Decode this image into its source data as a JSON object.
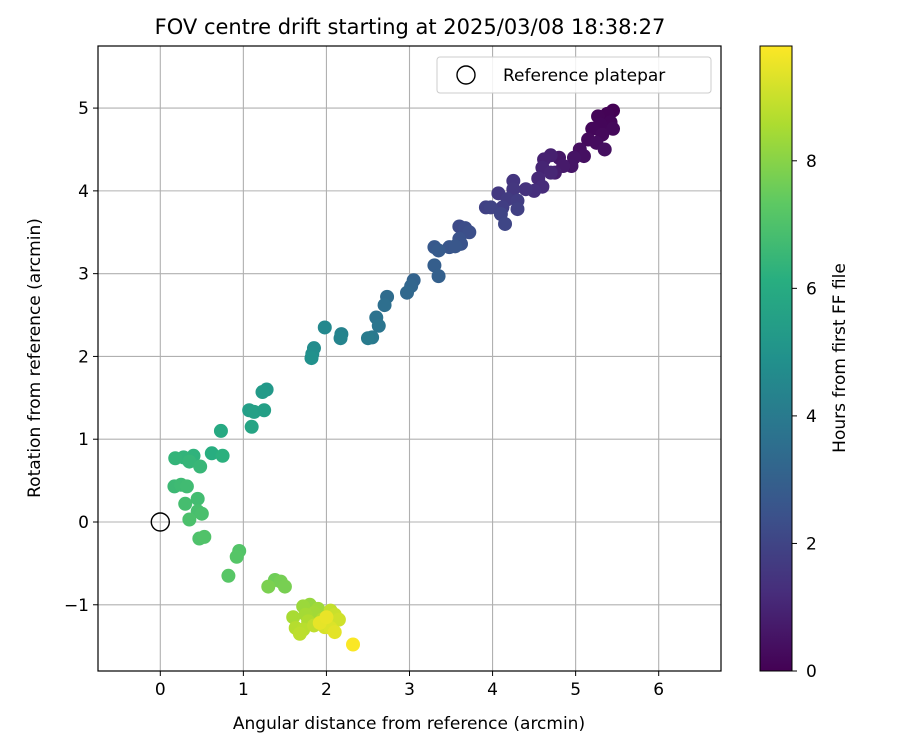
{
  "chart_data": {
    "type": "scatter",
    "title": "FOV centre drift starting at 2025/03/08 18:38:27",
    "xlabel": "Angular distance from reference (arcmin)",
    "ylabel": "Rotation from reference (arcmin)",
    "xlim": [
      -0.75,
      6.75
    ],
    "ylim": [
      -1.8,
      5.75
    ],
    "xticks": [
      0,
      1,
      2,
      3,
      4,
      5,
      6
    ],
    "yticks": [
      -1,
      0,
      1,
      2,
      3,
      4,
      5
    ],
    "ytick_labels": [
      "−1",
      "0",
      "1",
      "2",
      "3",
      "4",
      "5"
    ],
    "grid": true,
    "legend": {
      "label": "Reference platepar",
      "placement": "top-right",
      "marker": "open-circle"
    },
    "reference_point": {
      "x": 0,
      "y": 0
    },
    "colorbar": {
      "label": "Hours from first FF file",
      "range": [
        0,
        9.8
      ],
      "ticks": [
        0,
        2,
        4,
        6,
        8
      ],
      "colormap": "viridis"
    },
    "series": [
      {
        "values": [
          {
            "x": 5.45,
            "y": 4.97,
            "c": 0.0
          },
          {
            "x": 5.38,
            "y": 4.93,
            "c": 0.05
          },
          {
            "x": 5.27,
            "y": 4.9,
            "c": 0.1
          },
          {
            "x": 5.42,
            "y": 4.83,
            "c": 0.12
          },
          {
            "x": 5.3,
            "y": 4.8,
            "c": 0.15
          },
          {
            "x": 5.2,
            "y": 4.75,
            "c": 0.18
          },
          {
            "x": 5.45,
            "y": 4.75,
            "c": 0.2
          },
          {
            "x": 5.32,
            "y": 4.68,
            "c": 0.22
          },
          {
            "x": 5.15,
            "y": 4.62,
            "c": 0.25
          },
          {
            "x": 5.25,
            "y": 4.58,
            "c": 0.3
          },
          {
            "x": 5.05,
            "y": 4.5,
            "c": 0.35
          },
          {
            "x": 5.35,
            "y": 4.5,
            "c": 0.38
          },
          {
            "x": 5.1,
            "y": 4.42,
            "c": 0.42
          },
          {
            "x": 4.98,
            "y": 4.4,
            "c": 0.5
          },
          {
            "x": 4.95,
            "y": 4.3,
            "c": 0.55
          },
          {
            "x": 4.8,
            "y": 4.4,
            "c": 0.6
          },
          {
            "x": 4.85,
            "y": 4.3,
            "c": 0.7
          },
          {
            "x": 4.75,
            "y": 4.22,
            "c": 0.8
          },
          {
            "x": 4.7,
            "y": 4.43,
            "c": 0.85
          },
          {
            "x": 4.62,
            "y": 4.38,
            "c": 0.9
          },
          {
            "x": 4.6,
            "y": 4.28,
            "c": 1.0
          },
          {
            "x": 4.7,
            "y": 4.22,
            "c": 1.05
          },
          {
            "x": 4.55,
            "y": 4.15,
            "c": 1.1
          },
          {
            "x": 4.6,
            "y": 4.05,
            "c": 1.2
          },
          {
            "x": 4.5,
            "y": 4.0,
            "c": 1.3
          },
          {
            "x": 4.4,
            "y": 4.02,
            "c": 1.4
          },
          {
            "x": 4.25,
            "y": 4.12,
            "c": 1.5
          },
          {
            "x": 4.25,
            "y": 4.02,
            "c": 1.55
          },
          {
            "x": 4.07,
            "y": 3.97,
            "c": 1.6
          },
          {
            "x": 4.18,
            "y": 3.9,
            "c": 1.7
          },
          {
            "x": 4.3,
            "y": 3.88,
            "c": 1.75
          },
          {
            "x": 4.12,
            "y": 3.8,
            "c": 1.8
          },
          {
            "x": 4.3,
            "y": 3.78,
            "c": 1.85
          },
          {
            "x": 3.92,
            "y": 3.8,
            "c": 1.9
          },
          {
            "x": 3.98,
            "y": 3.8,
            "c": 1.95
          },
          {
            "x": 4.1,
            "y": 3.72,
            "c": 2.0
          },
          {
            "x": 4.15,
            "y": 3.6,
            "c": 2.05
          },
          {
            "x": 3.6,
            "y": 3.57,
            "c": 2.2
          },
          {
            "x": 3.67,
            "y": 3.55,
            "c": 2.3
          },
          {
            "x": 3.72,
            "y": 3.5,
            "c": 2.35
          },
          {
            "x": 3.6,
            "y": 3.42,
            "c": 2.45
          },
          {
            "x": 3.62,
            "y": 3.36,
            "c": 2.5
          },
          {
            "x": 3.48,
            "y": 3.32,
            "c": 2.6
          },
          {
            "x": 3.55,
            "y": 3.33,
            "c": 2.65
          },
          {
            "x": 3.3,
            "y": 3.32,
            "c": 2.7
          },
          {
            "x": 3.35,
            "y": 3.28,
            "c": 2.8
          },
          {
            "x": 3.3,
            "y": 3.1,
            "c": 2.9
          },
          {
            "x": 3.35,
            "y": 2.97,
            "c": 3.0
          },
          {
            "x": 3.05,
            "y": 2.92,
            "c": 3.1
          },
          {
            "x": 3.02,
            "y": 2.85,
            "c": 3.2
          },
          {
            "x": 2.97,
            "y": 2.77,
            "c": 3.3
          },
          {
            "x": 2.73,
            "y": 2.72,
            "c": 3.45
          },
          {
            "x": 2.7,
            "y": 2.62,
            "c": 3.55
          },
          {
            "x": 2.6,
            "y": 2.47,
            "c": 3.7
          },
          {
            "x": 2.63,
            "y": 2.37,
            "c": 3.8
          },
          {
            "x": 2.55,
            "y": 2.23,
            "c": 3.95
          },
          {
            "x": 2.5,
            "y": 2.22,
            "c": 4.05
          },
          {
            "x": 2.18,
            "y": 2.27,
            "c": 4.3
          },
          {
            "x": 2.17,
            "y": 2.22,
            "c": 4.4
          },
          {
            "x": 1.98,
            "y": 2.35,
            "c": 4.55
          },
          {
            "x": 1.85,
            "y": 2.1,
            "c": 4.7
          },
          {
            "x": 1.83,
            "y": 2.03,
            "c": 4.8
          },
          {
            "x": 1.82,
            "y": 1.98,
            "c": 4.9
          },
          {
            "x": 1.28,
            "y": 1.6,
            "c": 5.2
          },
          {
            "x": 1.23,
            "y": 1.57,
            "c": 5.3
          },
          {
            "x": 1.07,
            "y": 1.35,
            "c": 5.45
          },
          {
            "x": 1.13,
            "y": 1.33,
            "c": 5.55
          },
          {
            "x": 1.25,
            "y": 1.35,
            "c": 5.5
          },
          {
            "x": 1.1,
            "y": 1.15,
            "c": 5.7
          },
          {
            "x": 0.73,
            "y": 1.1,
            "c": 5.9
          },
          {
            "x": 0.62,
            "y": 0.83,
            "c": 6.1
          },
          {
            "x": 0.75,
            "y": 0.8,
            "c": 6.2
          },
          {
            "x": 0.4,
            "y": 0.8,
            "c": 6.3
          },
          {
            "x": 0.28,
            "y": 0.78,
            "c": 6.35
          },
          {
            "x": 0.18,
            "y": 0.77,
            "c": 6.4
          },
          {
            "x": 0.35,
            "y": 0.73,
            "c": 6.45
          },
          {
            "x": 0.48,
            "y": 0.67,
            "c": 6.5
          },
          {
            "x": 0.17,
            "y": 0.43,
            "c": 6.6
          },
          {
            "x": 0.25,
            "y": 0.45,
            "c": 6.65
          },
          {
            "x": 0.32,
            "y": 0.43,
            "c": 6.7
          },
          {
            "x": 0.45,
            "y": 0.28,
            "c": 6.75
          },
          {
            "x": 0.3,
            "y": 0.22,
            "c": 6.8
          },
          {
            "x": 0.45,
            "y": 0.13,
            "c": 6.85
          },
          {
            "x": 0.5,
            "y": 0.1,
            "c": 6.9
          },
          {
            "x": 0.35,
            "y": 0.03,
            "c": 6.95
          },
          {
            "x": 0.47,
            "y": -0.2,
            "c": 7.0
          },
          {
            "x": 0.53,
            "y": -0.18,
            "c": 7.05
          },
          {
            "x": 0.95,
            "y": -0.35,
            "c": 7.1
          },
          {
            "x": 0.92,
            "y": -0.42,
            "c": 7.15
          },
          {
            "x": 0.82,
            "y": -0.65,
            "c": 7.2
          },
          {
            "x": 1.38,
            "y": -0.7,
            "c": 7.6
          },
          {
            "x": 1.45,
            "y": -0.72,
            "c": 7.7
          },
          {
            "x": 1.5,
            "y": -0.78,
            "c": 7.75
          },
          {
            "x": 1.3,
            "y": -0.78,
            "c": 7.8
          },
          {
            "x": 1.8,
            "y": -1.0,
            "c": 8.2
          },
          {
            "x": 1.72,
            "y": -1.02,
            "c": 8.3
          },
          {
            "x": 1.9,
            "y": -1.05,
            "c": 8.35
          },
          {
            "x": 1.85,
            "y": -1.1,
            "c": 8.4
          },
          {
            "x": 1.75,
            "y": -1.12,
            "c": 8.45
          },
          {
            "x": 1.6,
            "y": -1.15,
            "c": 8.5
          },
          {
            "x": 1.78,
            "y": -1.2,
            "c": 8.6
          },
          {
            "x": 1.95,
            "y": -1.18,
            "c": 8.65
          },
          {
            "x": 1.63,
            "y": -1.28,
            "c": 8.7
          },
          {
            "x": 1.72,
            "y": -1.3,
            "c": 8.75
          },
          {
            "x": 1.68,
            "y": -1.35,
            "c": 8.8
          },
          {
            "x": 1.85,
            "y": -1.25,
            "c": 8.85
          },
          {
            "x": 2.05,
            "y": -1.07,
            "c": 8.9
          },
          {
            "x": 2.1,
            "y": -1.12,
            "c": 9.0
          },
          {
            "x": 2.15,
            "y": -1.18,
            "c": 9.1
          },
          {
            "x": 1.98,
            "y": -1.27,
            "c": 9.2
          },
          {
            "x": 2.05,
            "y": -1.28,
            "c": 9.3
          },
          {
            "x": 2.1,
            "y": -1.33,
            "c": 9.4
          },
          {
            "x": 1.92,
            "y": -1.22,
            "c": 9.45
          },
          {
            "x": 2.0,
            "y": -1.15,
            "c": 9.5
          },
          {
            "x": 2.32,
            "y": -1.48,
            "c": 9.75
          }
        ]
      }
    ]
  },
  "colors": {
    "reference_marker": "#000000",
    "grid": "#b0b0b0",
    "frame": "#000000"
  }
}
